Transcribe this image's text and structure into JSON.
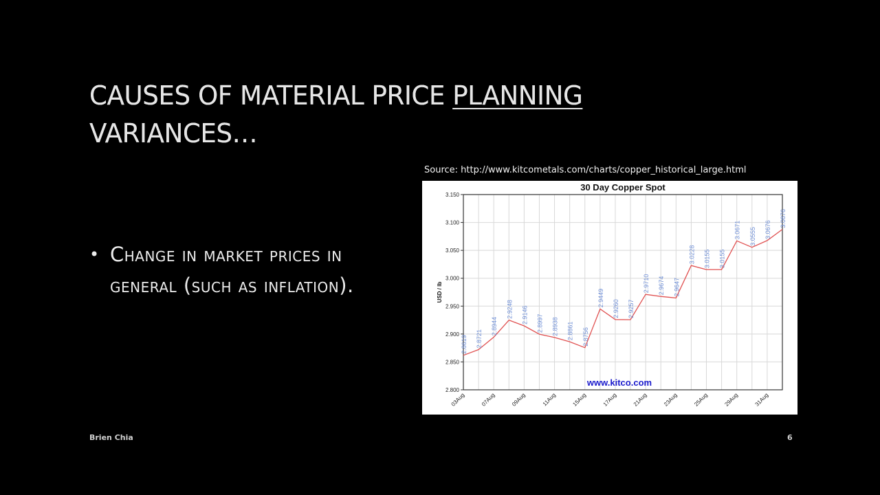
{
  "slide": {
    "title_part1": "CAUSES OF MATERIAL PRICE ",
    "title_underlined": "PLANNING",
    "title_part2": "VARIANCES…",
    "bullets": [
      {
        "marker": "•",
        "text": "Change in market prices in general (such as inflation)."
      }
    ],
    "source": "Source: http://www.kitcometals.com/charts/copper_historical_large.html",
    "footer_author": "Brien Chia",
    "page_number": "6"
  },
  "colors": {
    "background": "#000000",
    "line": "#e05050",
    "data_label": "#6f8fd6",
    "watermark": "#1a1acc",
    "grid": "#d8d8d8"
  },
  "chart_data": {
    "type": "line",
    "title": "30 Day Copper Spot",
    "xlabel": "",
    "ylabel": "USD / lb",
    "ylim": [
      2.8,
      3.15
    ],
    "yticks": [
      "3.150",
      "3.100",
      "3.050",
      "3.000",
      "2.950",
      "2.900",
      "2.850",
      "2.800"
    ],
    "grid": true,
    "watermark": "www.kitco.com",
    "x_tick_labels": [
      "03Aug",
      "07Aug",
      "09Aug",
      "11Aug",
      "15Aug",
      "17Aug",
      "21Aug",
      "23Aug",
      "25Aug",
      "29Aug",
      "31Aug"
    ],
    "series": [
      {
        "name": "Copper Spot",
        "values": [
          2.8619,
          2.8721,
          2.8944,
          2.9248,
          2.9146,
          2.8997,
          2.8938,
          2.8861,
          2.8756,
          2.9449,
          2.926,
          2.9257,
          2.971,
          2.9674,
          2.9647,
          3.0228,
          3.0155,
          3.0155,
          3.0671,
          3.0555,
          3.0676,
          3.0876
        ],
        "labels": [
          "2.8619",
          "2.8721",
          "2.8944",
          "2.9248",
          "2.9146",
          "2.8997",
          "2.8938",
          "2.8861",
          "2.8756",
          "2.9449",
          "2.9260",
          "2.9257",
          "2.9710",
          "2.9674",
          "2.9647",
          "3.0228",
          "3.0155",
          "3.0155",
          "3.0671",
          "3.0555",
          "3.0676",
          "3.0876"
        ]
      }
    ]
  }
}
